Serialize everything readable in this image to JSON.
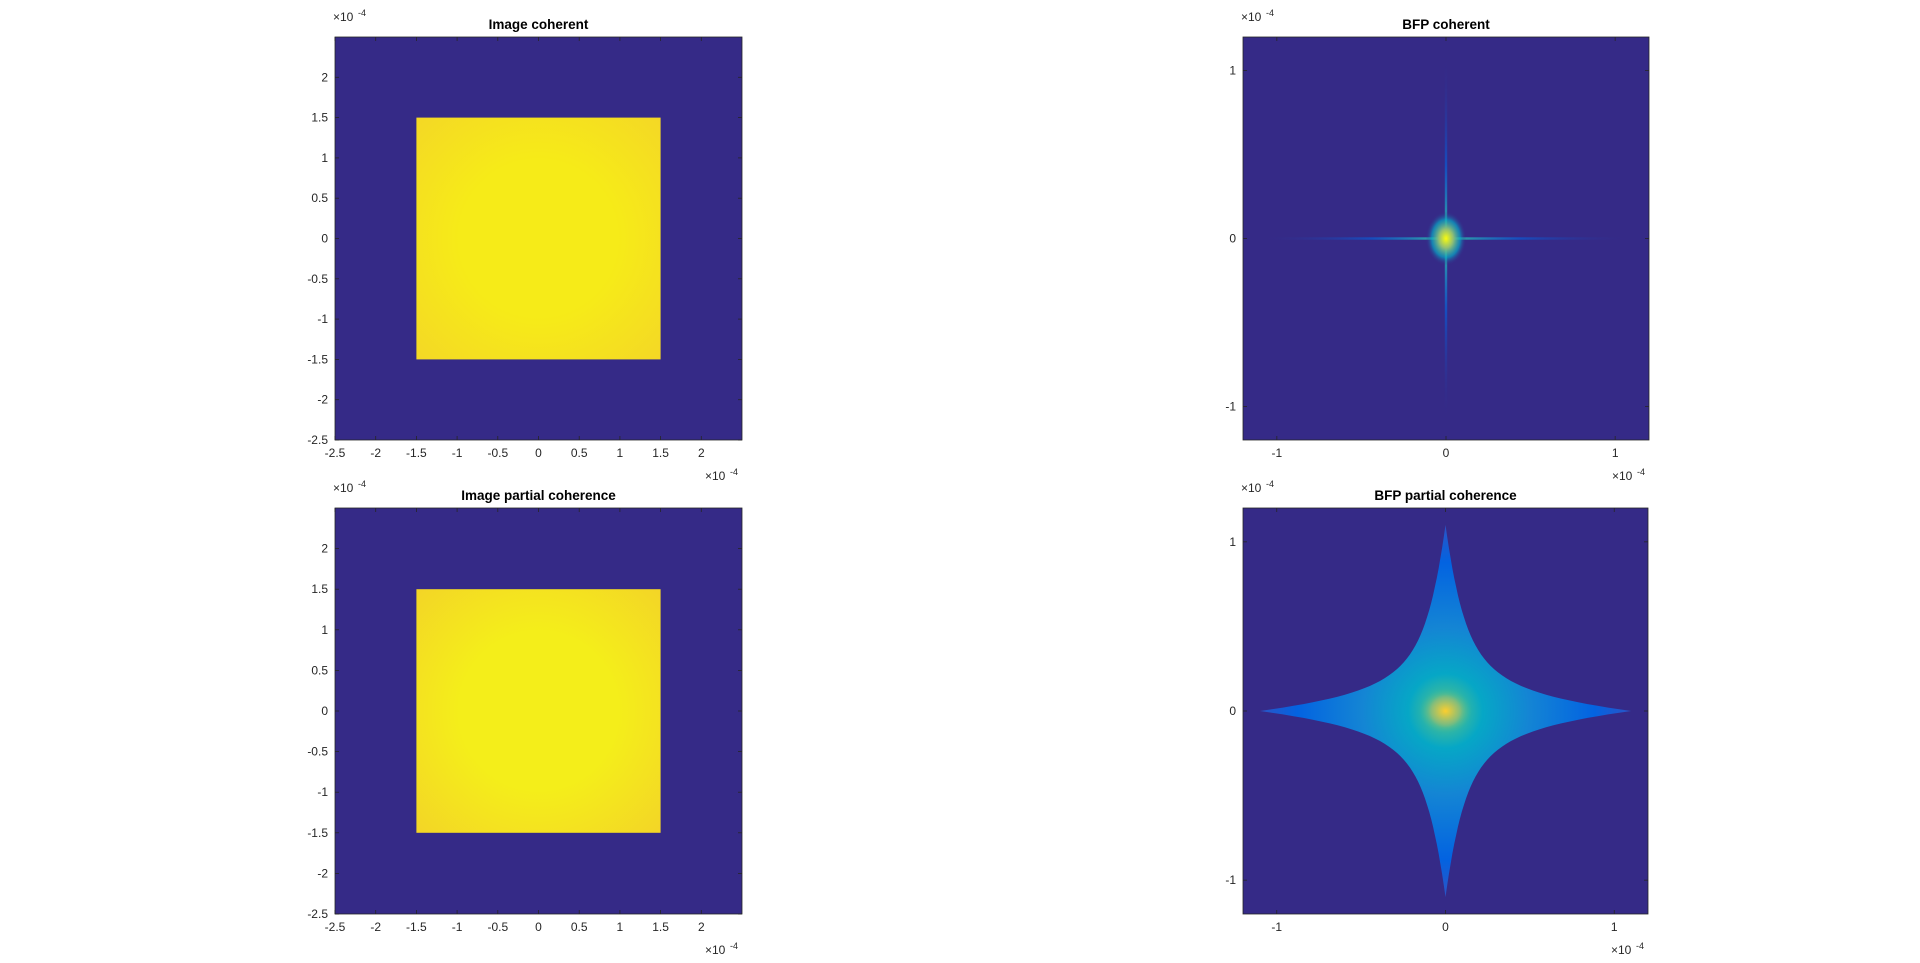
{
  "figure": {
    "background": "#ffffff"
  },
  "colormap": {
    "name": "parula",
    "background": "#352a87",
    "stops": [
      "#352a87",
      "#0363e1",
      "#1485d4",
      "#06a7c6",
      "#38b99e",
      "#92bf73",
      "#d9ba56",
      "#fcce2e",
      "#f9fb0e"
    ]
  },
  "chart_data": [
    {
      "type": "heatmap",
      "title": "Image coherent",
      "content": "square",
      "square": {
        "x": [
          -0.00015,
          0.00015
        ],
        "y": [
          -0.00015,
          0.00015
        ],
        "edge_color": "#f4d726",
        "center_color": "#f6eb18"
      },
      "xlim": [
        -0.00025,
        0.00025
      ],
      "ylim": [
        -0.00025,
        0.00025
      ],
      "xticks": [
        -2.5,
        -2,
        -1.5,
        -1,
        -0.5,
        0,
        0.5,
        1,
        1.5,
        2
      ],
      "yticks": [
        -2.5,
        -2,
        -1.5,
        -1,
        -0.5,
        0,
        0.5,
        1,
        1.5,
        2
      ],
      "xtick_labels": [
        "-2.5",
        "-2",
        "-1.5",
        "-1",
        "-0.5",
        "0",
        "0.5",
        "1",
        "1.5",
        "2"
      ],
      "ytick_labels": [
        "-2.5",
        "-2",
        "-1.5",
        "-1",
        "-0.5",
        "0",
        "0.5",
        "1",
        "1.5",
        "2"
      ],
      "tick_scale": 0.0001,
      "x_exponent": {
        "base": "×10",
        "power": "-4"
      },
      "y_exponent": {
        "base": "×10",
        "power": "-4"
      }
    },
    {
      "type": "heatmap",
      "title": "BFP coherent",
      "content": "cross",
      "cross": {
        "arm_extent": 0.00011,
        "glow_radius": 5e-06,
        "peak_color": "#f9fb0e",
        "arm_color": "#1485d4",
        "style": "thin"
      },
      "xlim": [
        -0.00012,
        0.00012
      ],
      "ylim": [
        -0.00012,
        0.00012
      ],
      "xticks": [
        -1,
        0,
        1
      ],
      "yticks": [
        -1,
        0,
        1
      ],
      "xtick_labels": [
        "-1",
        "0",
        "1"
      ],
      "ytick_labels": [
        "-1",
        "0",
        "1"
      ],
      "tick_scale": 0.0001,
      "x_exponent": {
        "base": "×10",
        "power": "-4"
      },
      "y_exponent": {
        "base": "×10",
        "power": "-4"
      }
    },
    {
      "type": "heatmap",
      "title": "Image partial coherence",
      "content": "square",
      "square": {
        "x": [
          -0.00015,
          0.00015
        ],
        "y": [
          -0.00015,
          0.00015
        ],
        "edge_color": "#f3d427",
        "center_color": "#f4ee1a"
      },
      "xlim": [
        -0.00025,
        0.00025
      ],
      "ylim": [
        -0.00025,
        0.00025
      ],
      "xticks": [
        -2.5,
        -2,
        -1.5,
        -1,
        -0.5,
        0,
        0.5,
        1,
        1.5,
        2
      ],
      "yticks": [
        -2.5,
        -2,
        -1.5,
        -1,
        -0.5,
        0,
        0.5,
        1,
        1.5,
        2
      ],
      "xtick_labels": [
        "-2.5",
        "-2",
        "-1.5",
        "-1",
        "-0.5",
        "0",
        "0.5",
        "1",
        "1.5",
        "2"
      ],
      "ytick_labels": [
        "-2.5",
        "-2",
        "-1.5",
        "-1",
        "-0.5",
        "0",
        "0.5",
        "1",
        "1.5",
        "2"
      ],
      "tick_scale": 0.0001,
      "x_exponent": {
        "base": "×10",
        "power": "-4"
      },
      "y_exponent": {
        "base": "×10",
        "power": "-4"
      }
    },
    {
      "type": "heatmap",
      "title": "BFP partial coherence",
      "content": "cross",
      "cross": {
        "arm_extent": 0.00011,
        "glow_radius": 1.2e-05,
        "peak_color": "#fcce2e",
        "arm_color": "#06a7c6",
        "style": "wide"
      },
      "xlim": [
        -0.00012,
        0.00012
      ],
      "ylim": [
        -0.00012,
        0.00012
      ],
      "xticks": [
        -1,
        0,
        1
      ],
      "yticks": [
        -1,
        0,
        1
      ],
      "xtick_labels": [
        "-1",
        "0",
        "1"
      ],
      "ytick_labels": [
        "-1",
        "0",
        "1"
      ],
      "tick_scale": 0.0001,
      "x_exponent": {
        "base": "×10",
        "power": "-4"
      },
      "y_exponent": {
        "base": "×10",
        "power": "-4"
      }
    }
  ]
}
